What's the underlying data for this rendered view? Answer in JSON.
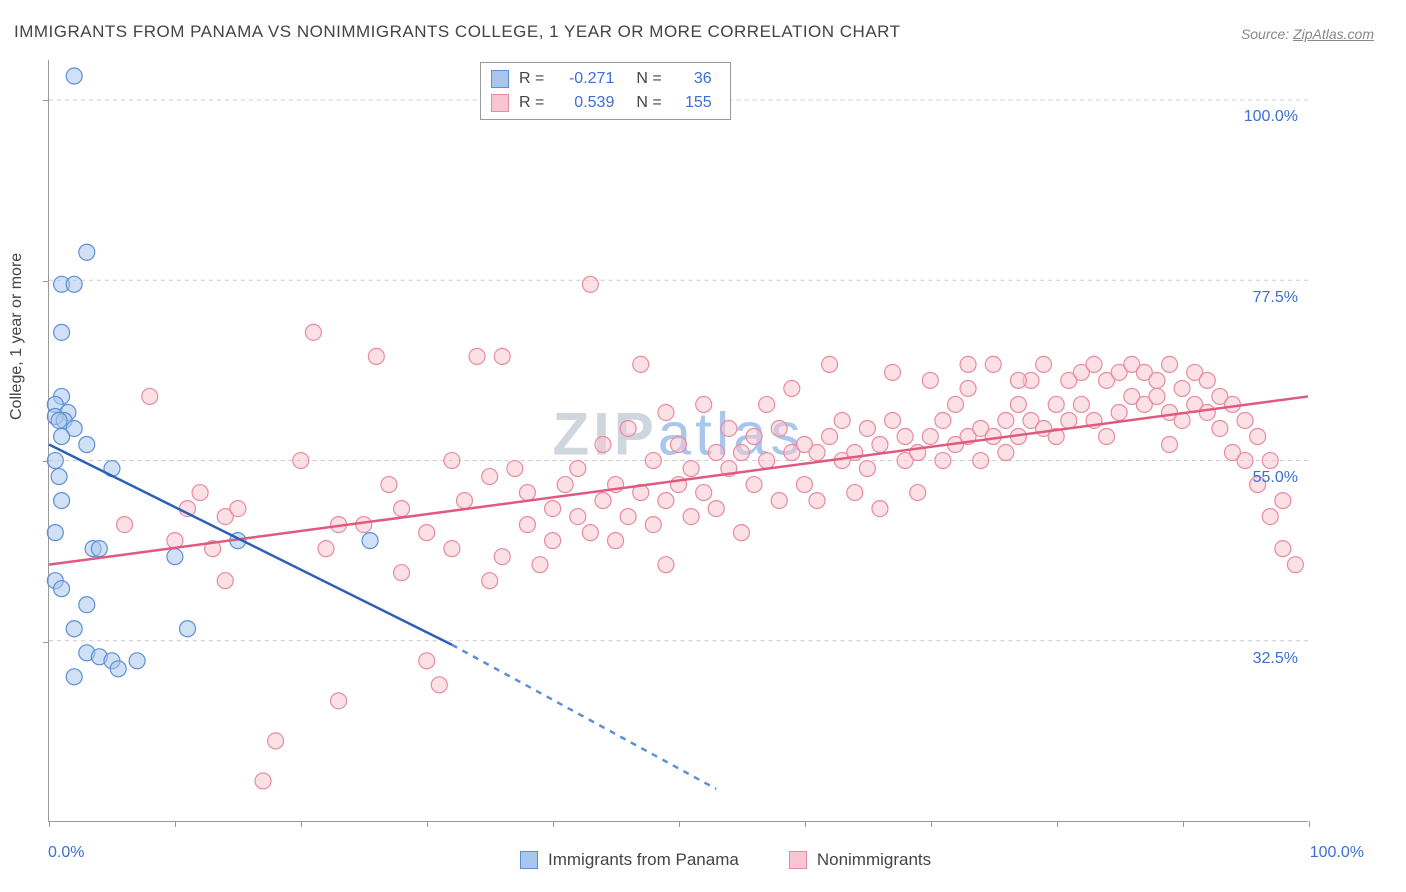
{
  "title": "IMMIGRANTS FROM PANAMA VS NONIMMIGRANTS COLLEGE, 1 YEAR OR MORE CORRELATION CHART",
  "source_label": "Source:",
  "source_name": "ZipAtlas.com",
  "y_axis_title": "College, 1 year or more",
  "watermark_text": "ZIPatlas",
  "watermark_colors": {
    "zip": "#cfd6dd",
    "atlas": "#a9c7ec"
  },
  "chart": {
    "type": "scatter",
    "background_color": "#ffffff",
    "grid_color": "#cccccc",
    "axis_color": "#999999",
    "tick_label_color": "#3b6fd8",
    "title_color": "#444444",
    "title_fontsize": 17,
    "label_fontsize": 16,
    "xlim": [
      0,
      100
    ],
    "ylim": [
      10,
      105
    ],
    "y_ticks": [
      32.5,
      55.0,
      77.5,
      100.0
    ],
    "y_tick_labels": [
      "32.5%",
      "55.0%",
      "77.5%",
      "100.0%"
    ],
    "x_ticks": [
      0,
      10,
      20,
      30,
      40,
      50,
      60,
      70,
      80,
      90,
      100
    ],
    "x_tick_labels_shown": {
      "0": "0.0%",
      "100": "100.0%"
    },
    "marker_radius": 8,
    "marker_stroke_width": 1.2,
    "line_width": 2.5
  },
  "series": [
    {
      "id": "immigrants",
      "label": "Immigrants from Panama",
      "fill_color": "#a9c7ec",
      "stroke_color": "#5e8fd6",
      "line_color": "#2e5fb8",
      "R": "-0.271",
      "N": "36",
      "regression": {
        "x1": 0,
        "y1": 57,
        "x2": 32,
        "y2": 32,
        "x2_dash": 53,
        "y2_dash": 14
      },
      "points": [
        [
          2,
          103
        ],
        [
          3,
          81
        ],
        [
          1,
          77
        ],
        [
          2,
          77
        ],
        [
          1,
          71
        ],
        [
          1,
          63
        ],
        [
          0.5,
          62
        ],
        [
          1.5,
          61
        ],
        [
          0.5,
          60.5
        ],
        [
          1.2,
          60
        ],
        [
          0.8,
          60
        ],
        [
          2,
          59
        ],
        [
          1,
          58
        ],
        [
          3,
          57
        ],
        [
          0.5,
          55
        ],
        [
          5,
          54
        ],
        [
          0.8,
          53
        ],
        [
          1,
          50
        ],
        [
          0.5,
          46
        ],
        [
          3.5,
          44
        ],
        [
          4,
          44
        ],
        [
          10,
          43
        ],
        [
          0.5,
          40
        ],
        [
          1,
          39
        ],
        [
          3,
          37
        ],
        [
          2,
          34
        ],
        [
          11,
          34
        ],
        [
          25.5,
          45
        ],
        [
          3,
          31
        ],
        [
          4,
          30.5
        ],
        [
          5,
          30
        ],
        [
          7,
          30
        ],
        [
          5.5,
          29
        ],
        [
          2,
          28
        ],
        [
          15,
          45
        ]
      ]
    },
    {
      "id": "nonimmigrants",
      "label": "Nonimmigrants",
      "fill_color": "#f8c6d2",
      "stroke_color": "#e88aa3",
      "line_color": "#e05a7f",
      "R": "0.539",
      "N": "155",
      "regression": {
        "x1": 0,
        "y1": 42,
        "x2": 100,
        "y2": 63
      },
      "points": [
        [
          6,
          47
        ],
        [
          8,
          63
        ],
        [
          10,
          45
        ],
        [
          11,
          49
        ],
        [
          12,
          51
        ],
        [
          13,
          44
        ],
        [
          14,
          48
        ],
        [
          14,
          40
        ],
        [
          15,
          49
        ],
        [
          17,
          15
        ],
        [
          18,
          20
        ],
        [
          20,
          55
        ],
        [
          21,
          71
        ],
        [
          22,
          44
        ],
        [
          23,
          47
        ],
        [
          23,
          25
        ],
        [
          25,
          47
        ],
        [
          26,
          68
        ],
        [
          27,
          52
        ],
        [
          28,
          49
        ],
        [
          28,
          41
        ],
        [
          30,
          30
        ],
        [
          30,
          46
        ],
        [
          31,
          27
        ],
        [
          32,
          55
        ],
        [
          32,
          44
        ],
        [
          33,
          50
        ],
        [
          34,
          68
        ],
        [
          35,
          40
        ],
        [
          35,
          53
        ],
        [
          36,
          68
        ],
        [
          36,
          43
        ],
        [
          37,
          54
        ],
        [
          38,
          47
        ],
        [
          38,
          51
        ],
        [
          39,
          42
        ],
        [
          40,
          49
        ],
        [
          40,
          45
        ],
        [
          41,
          52
        ],
        [
          42,
          48
        ],
        [
          42,
          54
        ],
        [
          43,
          77
        ],
        [
          43,
          46
        ],
        [
          44,
          50
        ],
        [
          44,
          57
        ],
        [
          45,
          52
        ],
        [
          45,
          45
        ],
        [
          46,
          59
        ],
        [
          46,
          48
        ],
        [
          47,
          67
        ],
        [
          47,
          51
        ],
        [
          48,
          55
        ],
        [
          48,
          47
        ],
        [
          49,
          61
        ],
        [
          49,
          42
        ],
        [
          49,
          50
        ],
        [
          50,
          52
        ],
        [
          50,
          57
        ],
        [
          51,
          48
        ],
        [
          51,
          54
        ],
        [
          52,
          51
        ],
        [
          52,
          62
        ],
        [
          53,
          56
        ],
        [
          53,
          49
        ],
        [
          54,
          59
        ],
        [
          54,
          54
        ],
        [
          55,
          56
        ],
        [
          55,
          46
        ],
        [
          56,
          58
        ],
        [
          56,
          52
        ],
        [
          57,
          62
        ],
        [
          57,
          55
        ],
        [
          58,
          59
        ],
        [
          58,
          50
        ],
        [
          59,
          56
        ],
        [
          59,
          64
        ],
        [
          60,
          57
        ],
        [
          60,
          52
        ],
        [
          61,
          56
        ],
        [
          61,
          50
        ],
        [
          62,
          67
        ],
        [
          62,
          58
        ],
        [
          63,
          55
        ],
        [
          63,
          60
        ],
        [
          64,
          56
        ],
        [
          64,
          51
        ],
        [
          65,
          59
        ],
        [
          65,
          54
        ],
        [
          66,
          57
        ],
        [
          66,
          49
        ],
        [
          67,
          66
        ],
        [
          67,
          60
        ],
        [
          68,
          55
        ],
        [
          68,
          58
        ],
        [
          69,
          56
        ],
        [
          69,
          51
        ],
        [
          70,
          65
        ],
        [
          70,
          58
        ],
        [
          71,
          60
        ],
        [
          71,
          55
        ],
        [
          72,
          57
        ],
        [
          72,
          62
        ],
        [
          73,
          58
        ],
        [
          73,
          64
        ],
        [
          74,
          59
        ],
        [
          74,
          55
        ],
        [
          75,
          67
        ],
        [
          75,
          58
        ],
        [
          76,
          60
        ],
        [
          76,
          56
        ],
        [
          77,
          62
        ],
        [
          77,
          58
        ],
        [
          78,
          60
        ],
        [
          78,
          65
        ],
        [
          79,
          59
        ],
        [
          79,
          67
        ],
        [
          80,
          62
        ],
        [
          80,
          58
        ],
        [
          81,
          65
        ],
        [
          81,
          60
        ],
        [
          82,
          66
        ],
        [
          82,
          62
        ],
        [
          83,
          67
        ],
        [
          83,
          60
        ],
        [
          84,
          65
        ],
        [
          84,
          58
        ],
        [
          85,
          66
        ],
        [
          85,
          61
        ],
        [
          86,
          67
        ],
        [
          86,
          63
        ],
        [
          87,
          66
        ],
        [
          87,
          62
        ],
        [
          88,
          65
        ],
        [
          88,
          63
        ],
        [
          89,
          67
        ],
        [
          89,
          61
        ],
        [
          89,
          57
        ],
        [
          90,
          64
        ],
        [
          90,
          60
        ],
        [
          91,
          66
        ],
        [
          91,
          62
        ],
        [
          92,
          65
        ],
        [
          92,
          61
        ],
        [
          93,
          63
        ],
        [
          93,
          59
        ],
        [
          94,
          62
        ],
        [
          94,
          56
        ],
        [
          95,
          60
        ],
        [
          95,
          55
        ],
        [
          96,
          58
        ],
        [
          96,
          52
        ],
        [
          97,
          55
        ],
        [
          97,
          48
        ],
        [
          98,
          50
        ],
        [
          98,
          44
        ],
        [
          99,
          42
        ],
        [
          73,
          67
        ],
        [
          77,
          65
        ]
      ]
    }
  ]
}
